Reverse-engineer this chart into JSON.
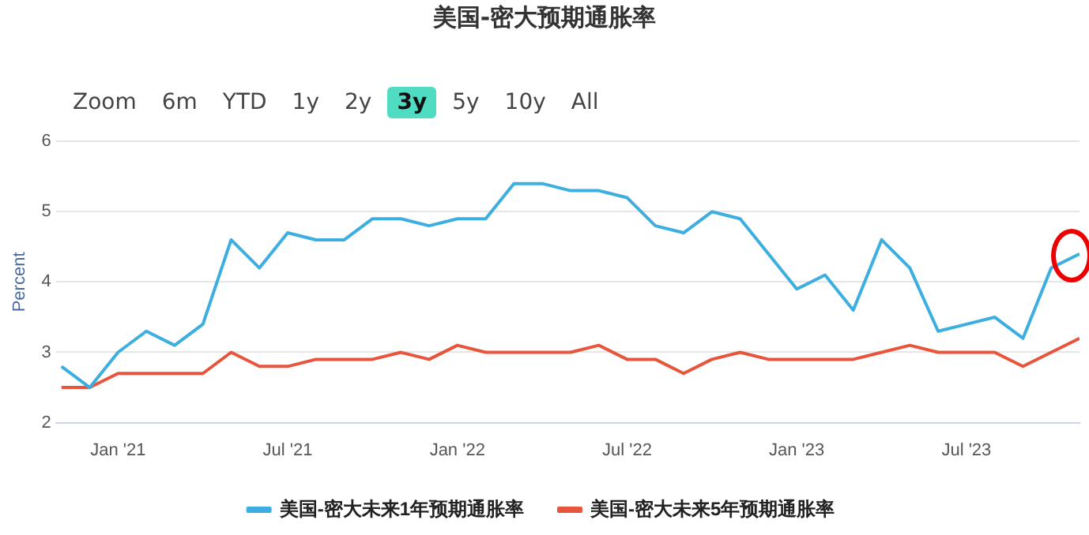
{
  "chart_data": {
    "type": "line",
    "title": "美国-密大预期通胀率",
    "ylabel": "Percent",
    "annotations": [
      "Zoom",
      "6m",
      "YTD",
      "1y",
      "2y",
      "3y",
      "5y",
      "10y",
      "All"
    ],
    "x": [
      "2020-11",
      "2020-12",
      "2021-01",
      "2021-02",
      "2021-03",
      "2021-04",
      "2021-05",
      "2021-06",
      "2021-07",
      "2021-08",
      "2021-09",
      "2021-10",
      "2021-11",
      "2021-12",
      "2022-01",
      "2022-02",
      "2022-03",
      "2022-04",
      "2022-05",
      "2022-06",
      "2022-07",
      "2022-08",
      "2022-09",
      "2022-10",
      "2022-11",
      "2022-12",
      "2023-01",
      "2023-02",
      "2023-03",
      "2023-04",
      "2023-05",
      "2023-06",
      "2023-07",
      "2023-08",
      "2023-09",
      "2023-10",
      "2023-11"
    ],
    "series": [
      {
        "name": "美国-密大未来1年预期通胀率",
        "color": "#3daee0",
        "values": [
          2.8,
          2.5,
          3.0,
          3.3,
          3.1,
          3.4,
          4.6,
          4.2,
          4.7,
          4.6,
          4.6,
          4.9,
          4.9,
          4.8,
          4.9,
          4.9,
          5.4,
          5.4,
          5.3,
          5.3,
          5.2,
          4.8,
          4.7,
          5.0,
          4.9,
          4.4,
          3.9,
          4.1,
          3.6,
          4.6,
          4.2,
          3.3,
          3.4,
          3.5,
          3.2,
          4.2,
          4.4
        ]
      },
      {
        "name": "美国-密大未来5年预期通胀率",
        "color": "#e8553d",
        "values": [
          2.5,
          2.5,
          2.7,
          2.7,
          2.7,
          2.7,
          3.0,
          2.8,
          2.8,
          2.9,
          2.9,
          2.9,
          3.0,
          2.9,
          3.1,
          3.0,
          3.0,
          3.0,
          3.0,
          3.1,
          2.9,
          2.9,
          2.7,
          2.9,
          3.0,
          2.9,
          2.9,
          2.9,
          2.9,
          3.0,
          3.1,
          3.0,
          3.0,
          3.0,
          2.8,
          3.0,
          3.2
        ]
      }
    ],
    "xlim": [
      "2020-10-25",
      "2023-11-01"
    ],
    "xticks": [
      {
        "value": "2021-01",
        "label": "Jan '21"
      },
      {
        "value": "2021-07",
        "label": "Jul '21"
      },
      {
        "value": "2022-01",
        "label": "Jan '22"
      },
      {
        "value": "2022-07",
        "label": "Jul '22"
      },
      {
        "value": "2023-01",
        "label": "Jan '23"
      },
      {
        "value": "2023-07",
        "label": "Jul '23"
      }
    ],
    "ylim": [
      2,
      6
    ],
    "yticks": [
      2,
      3,
      4,
      5,
      6
    ],
    "grid": "y",
    "legend": "bottom",
    "marker": "none",
    "line_style": "solid"
  }
}
